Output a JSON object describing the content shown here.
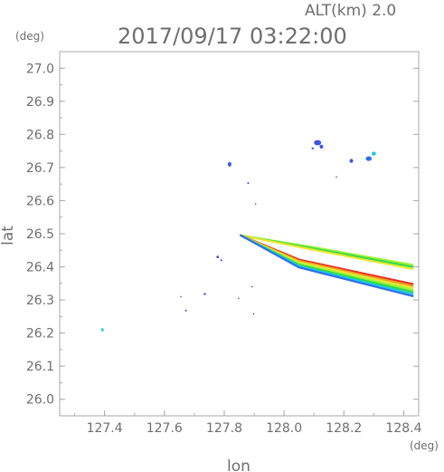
{
  "chart_data": {
    "type": "scatter",
    "title": "2017/09/17 03:22:00",
    "altitude_label": "ALT(km)  2.0",
    "xlabel": "lon",
    "ylabel": "lat",
    "x_unit": "(deg)",
    "y_unit": "(deg)",
    "xlim": [
      127.25,
      128.45
    ],
    "ylim": [
      25.95,
      27.05
    ],
    "x_ticks": [
      127.4,
      127.6,
      127.8,
      128.0,
      128.2,
      128.4
    ],
    "x_tick_labels": [
      "127.4",
      "127.6",
      "127.8",
      "128.0",
      "128.2",
      "128.4"
    ],
    "y_ticks": [
      26.0,
      26.1,
      26.2,
      26.3,
      26.4,
      26.5,
      26.6,
      26.7,
      26.8,
      26.9,
      27.0
    ],
    "y_tick_labels": [
      "26.0",
      "26.1",
      "26.2",
      "26.3",
      "26.4",
      "26.5",
      "26.6",
      "26.7",
      "26.8",
      "26.9",
      "27.0"
    ],
    "grid": false,
    "colors": {
      "blue": "#3a54e6",
      "royal": "#2f6ef0",
      "cyan": "#1fc8e8",
      "green": "#34d84a",
      "lime": "#9af53a",
      "yellow": "#e8e830",
      "orange": "#f0a020",
      "red": "#e83020",
      "purple": "#5a3cc8"
    },
    "echo_patches": [
      {
        "lon": 128.112,
        "lat": 26.775,
        "rx": 0.012,
        "ry": 0.008,
        "color": "blue"
      },
      {
        "lon": 128.125,
        "lat": 26.763,
        "rx": 0.006,
        "ry": 0.006,
        "color": "blue"
      },
      {
        "lon": 128.096,
        "lat": 26.758,
        "rx": 0.004,
        "ry": 0.003,
        "color": "blue"
      },
      {
        "lon": 128.3,
        "lat": 26.742,
        "rx": 0.007,
        "ry": 0.006,
        "color": "cyan"
      },
      {
        "lon": 128.283,
        "lat": 26.727,
        "rx": 0.01,
        "ry": 0.007,
        "color": "royal"
      },
      {
        "lon": 128.225,
        "lat": 26.72,
        "rx": 0.006,
        "ry": 0.006,
        "color": "blue"
      },
      {
        "lon": 127.818,
        "lat": 26.71,
        "rx": 0.006,
        "ry": 0.007,
        "color": "blue"
      },
      {
        "lon": 128.175,
        "lat": 26.672,
        "rx": 0.002,
        "ry": 0.002,
        "color": "blue"
      },
      {
        "lon": 127.88,
        "lat": 26.653,
        "rx": 0.003,
        "ry": 0.003,
        "color": "blue"
      },
      {
        "lon": 127.905,
        "lat": 26.59,
        "rx": 0.0015,
        "ry": 0.0015,
        "color": "purple"
      },
      {
        "lon": 127.778,
        "lat": 26.43,
        "rx": 0.004,
        "ry": 0.004,
        "color": "blue"
      },
      {
        "lon": 127.79,
        "lat": 26.42,
        "rx": 0.003,
        "ry": 0.003,
        "color": "blue"
      },
      {
        "lon": 127.735,
        "lat": 26.318,
        "rx": 0.004,
        "ry": 0.003,
        "color": "blue"
      },
      {
        "lon": 127.655,
        "lat": 26.31,
        "rx": 0.002,
        "ry": 0.002,
        "color": "purple"
      },
      {
        "lon": 127.848,
        "lat": 26.305,
        "rx": 0.0015,
        "ry": 0.0015,
        "color": "purple"
      },
      {
        "lon": 127.893,
        "lat": 26.34,
        "rx": 0.0015,
        "ry": 0.0015,
        "color": "purple"
      },
      {
        "lon": 127.672,
        "lat": 26.268,
        "rx": 0.003,
        "ry": 0.003,
        "color": "blue"
      },
      {
        "lon": 127.898,
        "lat": 26.258,
        "rx": 0.0015,
        "ry": 0.0015,
        "color": "purple"
      },
      {
        "lon": 127.393,
        "lat": 26.21,
        "rx": 0.004,
        "ry": 0.005,
        "color": "cyan"
      }
    ],
    "echo_bands": [
      {
        "name": "upper-band",
        "points": [
          [
            127.855,
            26.495
          ],
          [
            128.1,
            26.455
          ],
          [
            128.43,
            26.4
          ]
        ],
        "layers": [
          "lime",
          "green",
          "yellow"
        ]
      },
      {
        "name": "lower-band",
        "points": [
          [
            127.855,
            26.495
          ],
          [
            128.05,
            26.41
          ],
          [
            128.43,
            26.33
          ]
        ],
        "layers": [
          "red",
          "orange",
          "yellow",
          "lime",
          "green",
          "cyan",
          "royal"
        ]
      }
    ]
  }
}
